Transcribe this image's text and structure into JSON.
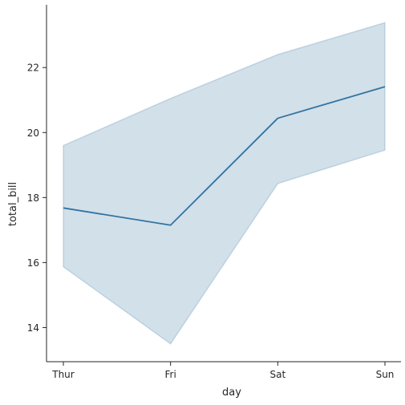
{
  "chart_data": {
    "type": "line",
    "categories": [
      "Thur",
      "Fri",
      "Sat",
      "Sun"
    ],
    "series": [
      {
        "values": [
          17.68,
          17.15,
          20.44,
          21.41
        ],
        "ci_lower": [
          15.87,
          13.5,
          18.43,
          19.46
        ],
        "ci_upper": [
          19.6,
          21.05,
          22.4,
          23.38
        ]
      }
    ],
    "xlabel": "day",
    "ylabel": "total_bill",
    "yticks": [
      14,
      16,
      18,
      20,
      22
    ],
    "ylim": [
      12.95,
      23.93
    ],
    "grid": false,
    "legend": "none",
    "colors": {
      "line": "#3274a1",
      "band": "#3274a1",
      "axis": "#262626"
    }
  }
}
